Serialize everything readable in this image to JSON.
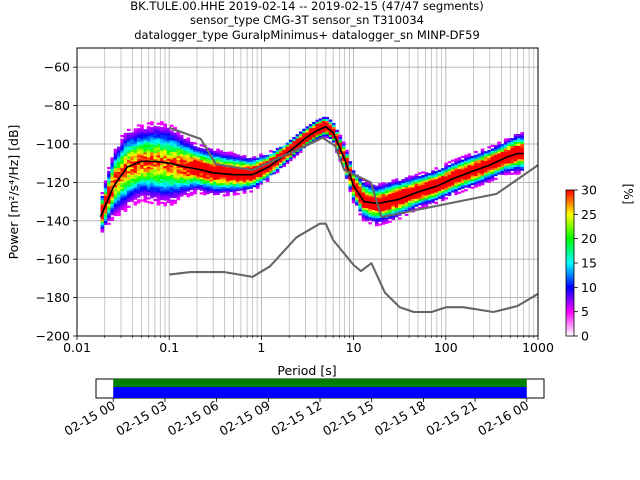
{
  "chart_data": {
    "type": "heatmap",
    "title_lines": [
      "BK.TULE.00.HHE   2019-02-14 -- 2019-02-15  (47/47 segments)",
      "sensor_type CMG-3T sensor_sn T310034",
      "datalogger_type GuralpMinimus+ datalogger_sn MINP-DF59"
    ],
    "xlabel": "Period [s]",
    "ylabel": "Power [m²/s⁴/Hz] [dB]",
    "xscale": "log",
    "xlim": [
      0.01,
      1000
    ],
    "ylim": [
      -200,
      -50
    ],
    "grid": true,
    "xticks": [
      {
        "value": 0.01,
        "label": "0.01"
      },
      {
        "value": 0.1,
        "label": "0.1"
      },
      {
        "value": 1,
        "label": "1"
      },
      {
        "value": 10,
        "label": "10"
      },
      {
        "value": 100,
        "label": "100"
      },
      {
        "value": 1000,
        "label": "1000"
      }
    ],
    "yticks": [
      {
        "value": -60,
        "label": "−60"
      },
      {
        "value": -80,
        "label": "−80"
      },
      {
        "value": -100,
        "label": "−100"
      },
      {
        "value": -120,
        "label": "−120"
      },
      {
        "value": -140,
        "label": "−140"
      },
      {
        "value": -160,
        "label": "−160"
      },
      {
        "value": -180,
        "label": "−180"
      },
      {
        "value": -200,
        "label": "−200"
      }
    ],
    "colorbar": {
      "label": "[%]",
      "range": [
        0,
        30
      ],
      "ticks": [
        "0",
        "5",
        "10",
        "15",
        "20",
        "25",
        "30"
      ],
      "colormap": [
        "#ffffff",
        "#ff00ff",
        "#0000ff",
        "#00ffff",
        "#00ff00",
        "#ffff00",
        "#ff0000"
      ]
    },
    "density_band": [
      {
        "period": 0.018,
        "center": -138,
        "spread": 5
      },
      {
        "period": 0.025,
        "center": -121,
        "spread": 10
      },
      {
        "period": 0.035,
        "center": -113,
        "spread": 12
      },
      {
        "period": 0.05,
        "center": -110,
        "spread": 11
      },
      {
        "period": 0.07,
        "center": -110,
        "spread": 12
      },
      {
        "period": 0.1,
        "center": -111,
        "spread": 12
      },
      {
        "period": 0.15,
        "center": -112,
        "spread": 9
      },
      {
        "period": 0.2,
        "center": -113,
        "spread": 7
      },
      {
        "period": 0.3,
        "center": -115,
        "spread": 7
      },
      {
        "period": 0.5,
        "center": -116,
        "spread": 6
      },
      {
        "period": 0.8,
        "center": -116,
        "spread": 5
      },
      {
        "period": 1.2,
        "center": -112,
        "spread": 4
      },
      {
        "period": 2,
        "center": -104,
        "spread": 3
      },
      {
        "period": 3,
        "center": -97,
        "spread": 3
      },
      {
        "period": 4,
        "center": -93,
        "spread": 3
      },
      {
        "period": 5,
        "center": -91,
        "spread": 3
      },
      {
        "period": 6,
        "center": -94,
        "spread": 3
      },
      {
        "period": 8,
        "center": -108,
        "spread": 4
      },
      {
        "period": 10,
        "center": -122,
        "spread": 5
      },
      {
        "period": 13,
        "center": -130,
        "spread": 6
      },
      {
        "period": 18,
        "center": -132,
        "spread": 6
      },
      {
        "period": 30,
        "center": -129,
        "spread": 6
      },
      {
        "period": 50,
        "center": -125,
        "spread": 5
      },
      {
        "period": 80,
        "center": -122,
        "spread": 5
      },
      {
        "period": 120,
        "center": -118,
        "spread": 5
      },
      {
        "period": 200,
        "center": -114,
        "spread": 5
      },
      {
        "period": 300,
        "center": -111,
        "spread": 5
      },
      {
        "period": 450,
        "center": -107,
        "spread": 5
      },
      {
        "period": 600,
        "center": -105,
        "spread": 6
      },
      {
        "period": 700,
        "center": -105,
        "spread": 6
      }
    ],
    "series": [
      {
        "role": "mean",
        "color": "#000000",
        "points": [
          [
            0.018,
            -138
          ],
          [
            0.025,
            -122
          ],
          [
            0.035,
            -112
          ],
          [
            0.05,
            -109
          ],
          [
            0.07,
            -109
          ],
          [
            0.1,
            -110
          ],
          [
            0.15,
            -112
          ],
          [
            0.2,
            -113
          ],
          [
            0.3,
            -115
          ],
          [
            0.5,
            -116
          ],
          [
            0.8,
            -116
          ],
          [
            1.2,
            -112
          ],
          [
            2,
            -104
          ],
          [
            3,
            -97
          ],
          [
            4,
            -93
          ],
          [
            5,
            -91
          ],
          [
            6,
            -94
          ],
          [
            8,
            -108
          ],
          [
            10,
            -122
          ],
          [
            13,
            -130
          ],
          [
            18,
            -131
          ],
          [
            30,
            -129
          ],
          [
            50,
            -125
          ],
          [
            80,
            -122
          ],
          [
            120,
            -118
          ],
          [
            200,
            -114
          ],
          [
            300,
            -111
          ],
          [
            450,
            -107
          ],
          [
            600,
            -105
          ],
          [
            700,
            -105
          ]
        ]
      },
      {
        "role": "reference-high",
        "color": "#666666",
        "points": [
          [
            0.1,
            -91.5
          ],
          [
            0.22,
            -97.4
          ],
          [
            0.32,
            -110.5
          ],
          [
            0.8,
            -113.6
          ],
          [
            3.8,
            -98.7
          ],
          [
            4.6,
            -96.7
          ],
          [
            6.3,
            -101
          ],
          [
            7.9,
            -113.5
          ],
          [
            15.4,
            -120
          ],
          [
            20,
            -138
          ],
          [
            354.8,
            -126
          ],
          [
            1000,
            -111
          ]
        ]
      },
      {
        "role": "reference-low",
        "color": "#666666",
        "points": [
          [
            0.1,
            -168
          ],
          [
            0.17,
            -166.7
          ],
          [
            0.4,
            -166.7
          ],
          [
            0.8,
            -169.2
          ],
          [
            1.24,
            -163.7
          ],
          [
            2.4,
            -148.6
          ],
          [
            4.3,
            -141.5
          ],
          [
            5,
            -141.5
          ],
          [
            6,
            -150
          ],
          [
            10,
            -163
          ],
          [
            12,
            -166.2
          ],
          [
            15.6,
            -162.1
          ],
          [
            21.9,
            -177.5
          ],
          [
            31.6,
            -185
          ],
          [
            45,
            -187.5
          ],
          [
            70,
            -187.5
          ],
          [
            101,
            -185
          ],
          [
            154,
            -185
          ],
          [
            328,
            -187.5
          ],
          [
            600,
            -184.4
          ],
          [
            1000,
            -178
          ]
        ]
      }
    ],
    "timeline": {
      "labels": [
        "02-15 00",
        "02-15 03",
        "02-15 06",
        "02-15 09",
        "02-15 12",
        "02-15 15",
        "02-15 18",
        "02-15 21",
        "02-16 00"
      ],
      "range_hours": [
        -1,
        25
      ],
      "data_span_hours": [
        0,
        24
      ],
      "bars": [
        {
          "name": "coverage",
          "color": "#008000"
        },
        {
          "name": "psd",
          "color": "#0000ff"
        }
      ]
    }
  }
}
